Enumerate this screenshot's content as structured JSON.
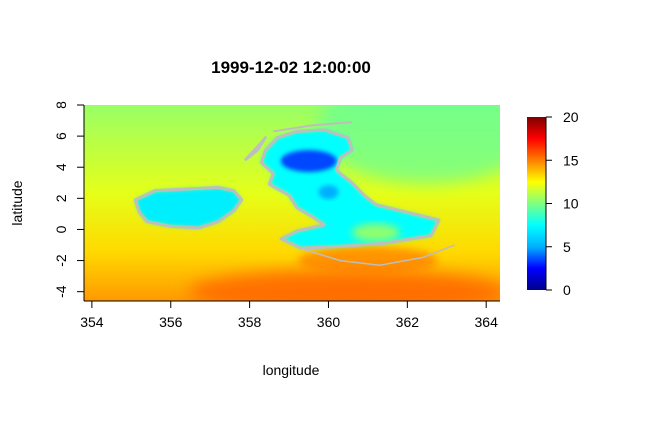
{
  "chart_data": {
    "type": "heatmap",
    "title": "1999-12-02 12:00:00",
    "xlabel": "longitude",
    "ylabel": "latitude",
    "xlim": [
      353.8,
      364.35
    ],
    "ylim": [
      -4.6,
      8.0
    ],
    "x_ticks": [
      354,
      356,
      358,
      360,
      362,
      364
    ],
    "x_tick_labels": [
      "354",
      "356",
      "358",
      "360",
      "362",
      "364"
    ],
    "y_ticks": [
      -4,
      -2,
      0,
      2,
      4,
      6,
      8
    ],
    "y_tick_labels": [
      "-4",
      "-2",
      "0",
      "2",
      "4",
      "6",
      "8"
    ],
    "colorbar": {
      "range": [
        0,
        20
      ],
      "ticks": [
        0,
        5,
        10,
        15,
        20
      ],
      "tick_labels": [
        "0",
        "5",
        "10",
        "15",
        "20"
      ],
      "colors": [
        "#00008b",
        "#0000ff",
        "#00b0ff",
        "#00ffff",
        "#7fff7f",
        "#ffff00",
        "#ff7f00",
        "#ff0000",
        "#7f0000"
      ]
    },
    "missing_color": "#bebebe",
    "field_summary": {
      "ocean_north": 10.5,
      "ocean_west": 12,
      "ocean_south": 14.5,
      "land_ireland": 7,
      "land_britain": 7.5,
      "land_scotland_highlands": 3.5,
      "channel_southeast": 15.5
    }
  }
}
